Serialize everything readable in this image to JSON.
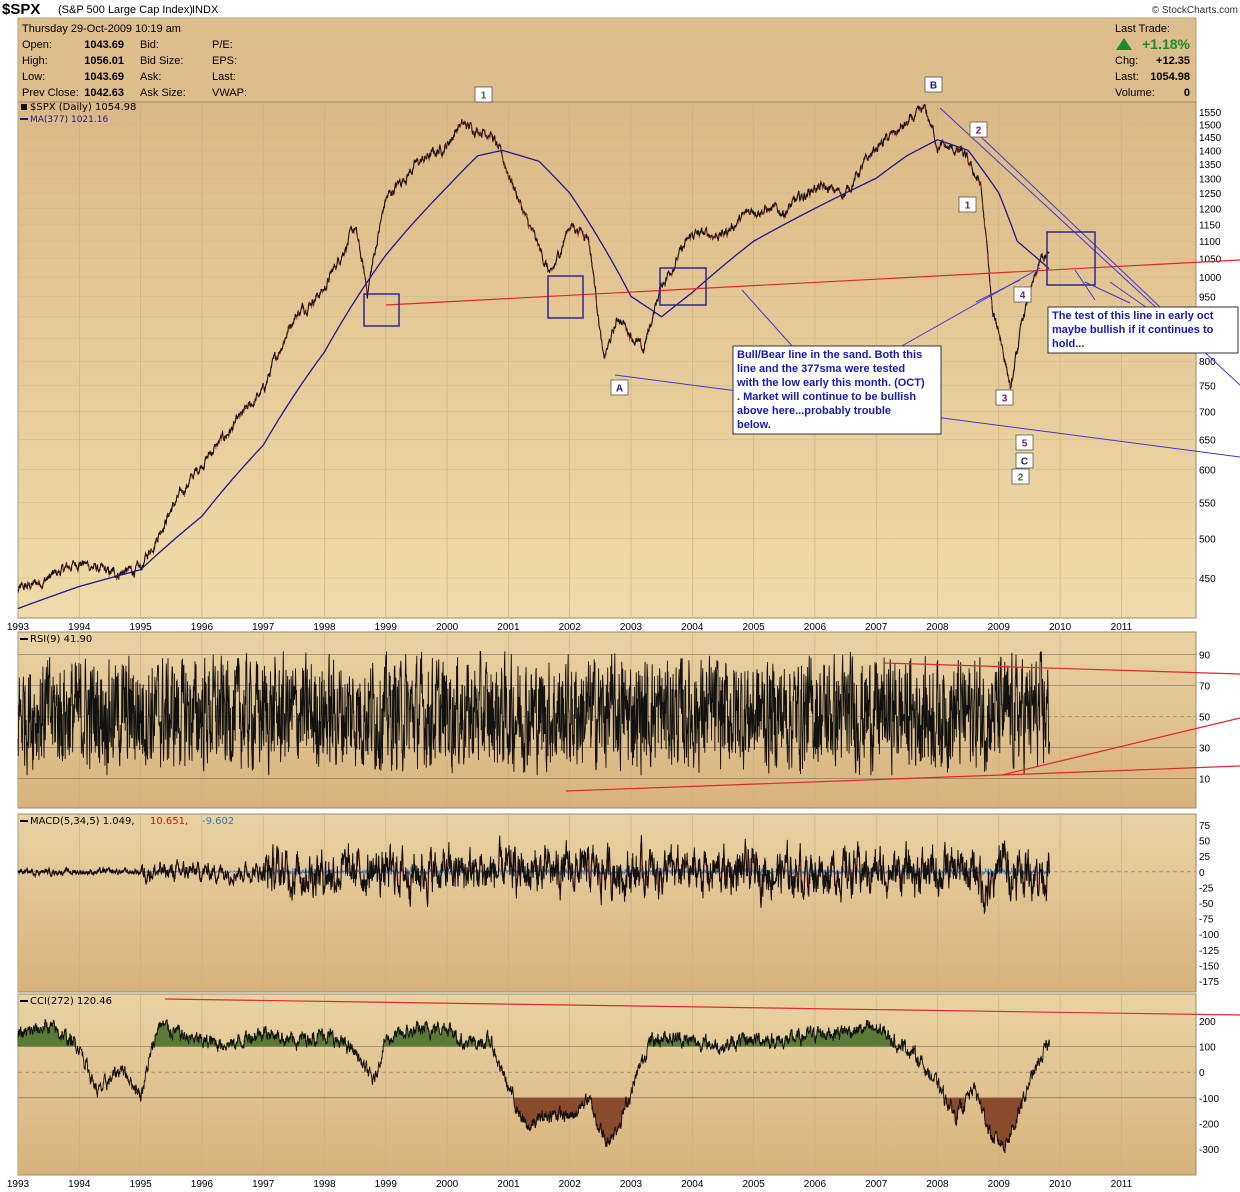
{
  "header": {
    "symbol": "$SPX",
    "name": "(S&P 500 Large Cap Index)",
    "exchange": "INDX",
    "watermark": "© StockCharts.com",
    "date_line": "Thursday  29-Oct-2009  10:19 am",
    "fields_left": [
      {
        "label": "Open:",
        "value": "1043.69"
      },
      {
        "label": "High:",
        "value": "1056.01"
      },
      {
        "label": "Low:",
        "value": "1043.69"
      },
      {
        "label": "Prev Close:",
        "value": "1042.63"
      }
    ],
    "fields_mid": [
      "Bid:",
      "Bid Size:",
      "Ask:",
      "Ask Size:"
    ],
    "fields_right": [
      "P/E:",
      "EPS:",
      "Last:",
      "VWAP:"
    ],
    "last_trade": {
      "title": "Last Trade:",
      "pct": "+1.18%",
      "chg_label": "Chg:",
      "chg": "+12.35",
      "last_label": "Last:",
      "last": "1054.98",
      "vol_label": "Volume:",
      "vol": "0"
    }
  },
  "legend": {
    "price": "$SPX (Daily) 1054.98",
    "ma": "MA(377) 1021.16",
    "rsi": "RSI(9) 41.90",
    "macd_a": "MACD(5,34,5) 1.049,",
    "macd_b": "10.651,",
    "macd_c": "-9.602",
    "cci": "CCI(272) 120.46"
  },
  "colors": {
    "background": "#e3c390",
    "price": "#111111",
    "ma": "#1a1a8c",
    "trendline_red": "#e0282e",
    "trendline_blue": "#3b3bd0",
    "macd_hist": "#3377bb",
    "cci_pos": "#5a7a35",
    "cci_neg": "#8a4a2c"
  },
  "annotations": {
    "note1": [
      "Bull/Bear line in the sand. Both this",
      "line and the 377sma were tested",
      "with the low early this month. (OCT)",
      ". Market will continue to be bullish",
      "above here...probably trouble",
      "below."
    ],
    "note2": [
      "The test of this line in early oct",
      "maybe bullish if it continues to",
      "hold..."
    ],
    "labels": [
      "1",
      "B",
      "2",
      "1",
      "A",
      "4",
      "3",
      "5",
      "C",
      "2"
    ]
  },
  "chart_data": [
    {
      "type": "line",
      "title": "$SPX (Daily)",
      "x_tick_labels": [
        "1993",
        "1994",
        "1995",
        "1996",
        "1997",
        "1998",
        "1999",
        "2000",
        "2001",
        "2002",
        "2003",
        "2004",
        "2005",
        "2006",
        "2007",
        "2008",
        "2009",
        "2010",
        "2011"
      ],
      "y_tick_labels": [
        "450",
        "500",
        "550",
        "600",
        "650",
        "700",
        "750",
        "800",
        "850",
        "900",
        "950",
        "1000",
        "1050",
        "1100",
        "1150",
        "1200",
        "1250",
        "1300",
        "1350",
        "1400",
        "1450",
        "1500",
        "1550"
      ],
      "log_scale": true,
      "series": [
        {
          "name": "$SPX (Daily)",
          "x": [
            1993.0,
            1993.5,
            1994.0,
            1994.5,
            1995.0,
            1995.5,
            1996.0,
            1996.5,
            1997.0,
            1997.5,
            1998.0,
            1998.5,
            1998.7,
            1999.0,
            1999.5,
            2000.0,
            2000.2,
            2000.7,
            2001.0,
            2001.3,
            2001.7,
            2002.0,
            2002.3,
            2002.55,
            2002.8,
            2003.2,
            2003.5,
            2004.0,
            2004.5,
            2005.0,
            2005.5,
            2006.0,
            2006.5,
            2007.0,
            2007.5,
            2007.8,
            2008.0,
            2008.4,
            2008.7,
            2008.9,
            2009.0,
            2009.2,
            2009.4,
            2009.7,
            2009.83
          ],
          "values": [
            435,
            450,
            470,
            455,
            460,
            540,
            610,
            670,
            740,
            900,
            970,
            1140,
            960,
            1230,
            1350,
            1420,
            1500,
            1470,
            1320,
            1160,
            1000,
            1150,
            1120,
            800,
            900,
            820,
            980,
            1120,
            1120,
            1200,
            1190,
            1270,
            1250,
            1410,
            1500,
            1560,
            1420,
            1390,
            1280,
            900,
            870,
            740,
            900,
            1050,
            1055
          ]
        },
        {
          "name": "MA(377)",
          "x": [
            1993.0,
            1994.0,
            1995.0,
            1996.0,
            1997.0,
            1998.0,
            1999.0,
            2000.0,
            2000.5,
            2000.9,
            2001.5,
            2002.0,
            2002.5,
            2003.0,
            2003.5,
            2004.0,
            2005.0,
            2006.0,
            2007.0,
            2007.5,
            2008.0,
            2008.5,
            2009.0,
            2009.3,
            2009.83
          ],
          "values": [
            415,
            440,
            460,
            530,
            640,
            820,
            1060,
            1270,
            1380,
            1400,
            1360,
            1250,
            1100,
            950,
            900,
            960,
            1100,
            1200,
            1300,
            1380,
            1440,
            1400,
            1250,
            1100,
            1021
          ]
        }
      ]
    },
    {
      "type": "line",
      "title": "RSI(9)",
      "y_tick_labels": [
        "10",
        "30",
        "50",
        "70",
        "90"
      ],
      "ylim": [
        0,
        100
      ],
      "last_value": 41.9
    },
    {
      "type": "line",
      "title": "MACD(5,34,5)",
      "y_tick_labels": [
        "75",
        "50",
        "25",
        "0",
        "-25",
        "-50",
        "-75",
        "-100",
        "-125",
        "-150",
        "-175"
      ],
      "ylim": [
        -190,
        90
      ],
      "values": {
        "macd": 1.049,
        "signal": 10.651,
        "histogram": -9.602
      }
    },
    {
      "type": "area",
      "title": "CCI(272)",
      "y_tick_labels": [
        "200",
        "100",
        "0",
        "-100",
        "-200",
        "-300"
      ],
      "ylim": [
        -370,
        270
      ],
      "last_value": 120.46
    }
  ]
}
